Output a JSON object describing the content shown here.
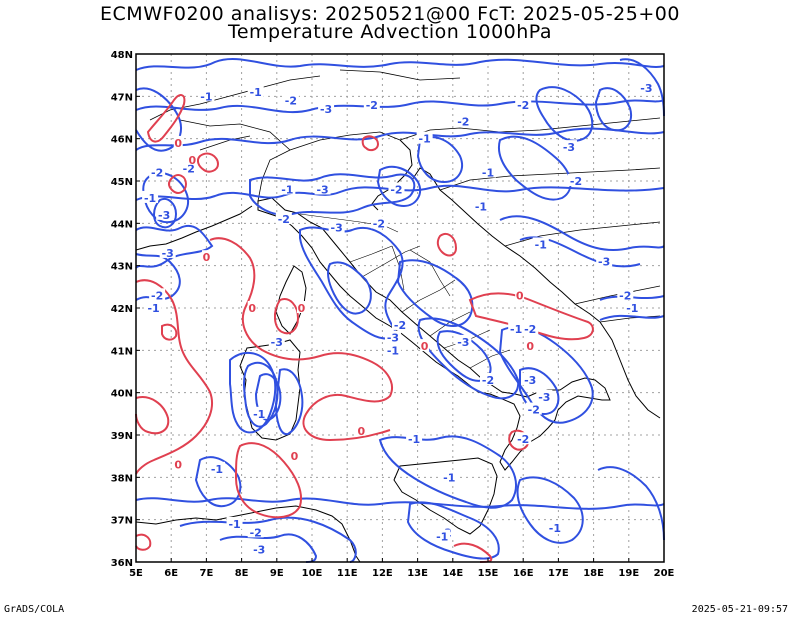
{
  "header": {
    "line1": "ECMWF0200 analisys: 20250521@00 FcT: 2025-05-25+00",
    "line2": "Temperature Advection 1000hPa"
  },
  "footer": {
    "left": "GrADS/COLA",
    "right": "2025-05-21-09:57"
  },
  "colors": {
    "negative_contour": "#3050e0",
    "positive_contour": "#e04050",
    "coastline": "#000000",
    "grid": "#a0a0a0"
  },
  "map": {
    "lon_range": [
      5,
      20
    ],
    "lat_range": [
      36,
      48
    ],
    "lon_ticks": [
      "5E",
      "6E",
      "7E",
      "8E",
      "9E",
      "10E",
      "11E",
      "12E",
      "13E",
      "14E",
      "15E",
      "16E",
      "17E",
      "18E",
      "19E",
      "20E"
    ],
    "lat_ticks": [
      "36N",
      "37N",
      "38N",
      "39N",
      "40N",
      "41N",
      "42N",
      "43N",
      "44N",
      "45N",
      "46N",
      "47N",
      "48N"
    ],
    "contour_labels": [
      {
        "text": "-1",
        "lon": 7.0,
        "lat": 47.0,
        "sign": "neg"
      },
      {
        "text": "-1",
        "lon": 8.4,
        "lat": 47.1,
        "sign": "neg"
      },
      {
        "text": "-2",
        "lon": 9.4,
        "lat": 46.9,
        "sign": "neg"
      },
      {
        "text": "-2",
        "lon": 11.7,
        "lat": 46.8,
        "sign": "neg"
      },
      {
        "text": "-3",
        "lon": 10.4,
        "lat": 46.7,
        "sign": "neg"
      },
      {
        "text": "-2",
        "lon": 14.3,
        "lat": 46.4,
        "sign": "neg"
      },
      {
        "text": "-2",
        "lon": 16.0,
        "lat": 46.8,
        "sign": "neg"
      },
      {
        "text": "-3",
        "lon": 19.5,
        "lat": 47.2,
        "sign": "neg"
      },
      {
        "text": "-3",
        "lon": 17.3,
        "lat": 45.8,
        "sign": "neg"
      },
      {
        "text": "-2",
        "lon": 17.5,
        "lat": 45.0,
        "sign": "neg"
      },
      {
        "text": "-1",
        "lon": 15.0,
        "lat": 45.2,
        "sign": "neg"
      },
      {
        "text": "-1",
        "lon": 13.2,
        "lat": 46.0,
        "sign": "neg"
      },
      {
        "text": "-2",
        "lon": 12.4,
        "lat": 44.8,
        "sign": "neg"
      },
      {
        "text": "-2",
        "lon": 5.6,
        "lat": 45.2,
        "sign": "neg"
      },
      {
        "text": "-2",
        "lon": 6.5,
        "lat": 45.3,
        "sign": "neg"
      },
      {
        "text": "-1",
        "lon": 5.4,
        "lat": 44.6,
        "sign": "neg"
      },
      {
        "text": "-3",
        "lon": 5.8,
        "lat": 44.2,
        "sign": "neg"
      },
      {
        "text": "-1",
        "lon": 9.3,
        "lat": 44.8,
        "sign": "neg"
      },
      {
        "text": "-3",
        "lon": 10.3,
        "lat": 44.8,
        "sign": "neg"
      },
      {
        "text": "-2",
        "lon": 9.2,
        "lat": 44.1,
        "sign": "neg"
      },
      {
        "text": "-3",
        "lon": 10.7,
        "lat": 43.9,
        "sign": "neg"
      },
      {
        "text": "-2",
        "lon": 11.9,
        "lat": 44.0,
        "sign": "neg"
      },
      {
        "text": "-1",
        "lon": 16.5,
        "lat": 43.5,
        "sign": "neg"
      },
      {
        "text": "-1",
        "lon": 14.8,
        "lat": 44.4,
        "sign": "neg"
      },
      {
        "text": "-3",
        "lon": 18.3,
        "lat": 43.1,
        "sign": "neg"
      },
      {
        "text": "-2",
        "lon": 5.6,
        "lat": 42.3,
        "sign": "neg"
      },
      {
        "text": "-1",
        "lon": 5.5,
        "lat": 42.0,
        "sign": "neg"
      },
      {
        "text": "-3",
        "lon": 5.9,
        "lat": 43.3,
        "sign": "neg"
      },
      {
        "text": "-2",
        "lon": 18.9,
        "lat": 42.3,
        "sign": "neg"
      },
      {
        "text": "-1",
        "lon": 19.1,
        "lat": 42.0,
        "sign": "neg"
      },
      {
        "text": "-2",
        "lon": 12.5,
        "lat": 41.6,
        "sign": "neg"
      },
      {
        "text": "-3",
        "lon": 12.3,
        "lat": 41.3,
        "sign": "neg"
      },
      {
        "text": "-1",
        "lon": 12.3,
        "lat": 41.0,
        "sign": "neg"
      },
      {
        "text": "-3",
        "lon": 14.3,
        "lat": 41.2,
        "sign": "neg"
      },
      {
        "text": "-1",
        "lon": 15.8,
        "lat": 41.5,
        "sign": "neg"
      },
      {
        "text": "-2",
        "lon": 16.2,
        "lat": 41.5,
        "sign": "neg"
      },
      {
        "text": "-2",
        "lon": 15.0,
        "lat": 40.3,
        "sign": "neg"
      },
      {
        "text": "-3",
        "lon": 16.2,
        "lat": 40.3,
        "sign": "neg"
      },
      {
        "text": "-3",
        "lon": 16.6,
        "lat": 39.9,
        "sign": "neg"
      },
      {
        "text": "-2",
        "lon": 16.3,
        "lat": 39.6,
        "sign": "neg"
      },
      {
        "text": "-1",
        "lon": 8.5,
        "lat": 39.5,
        "sign": "neg"
      },
      {
        "text": "-1",
        "lon": 12.9,
        "lat": 38.9,
        "sign": "neg"
      },
      {
        "text": "-1",
        "lon": 7.3,
        "lat": 38.2,
        "sign": "neg"
      },
      {
        "text": "-2",
        "lon": 16.0,
        "lat": 38.9,
        "sign": "neg"
      },
      {
        "text": "-1",
        "lon": 13.9,
        "lat": 38.0,
        "sign": "neg"
      },
      {
        "text": "-1",
        "lon": 7.8,
        "lat": 36.9,
        "sign": "neg"
      },
      {
        "text": "-2",
        "lon": 8.4,
        "lat": 36.7,
        "sign": "neg"
      },
      {
        "text": "-3",
        "lon": 8.5,
        "lat": 36.3,
        "sign": "neg"
      },
      {
        "text": "-2",
        "lon": 13.8,
        "lat": 36.7,
        "sign": "neg"
      },
      {
        "text": "-1",
        "lon": 13.7,
        "lat": 36.6,
        "sign": "neg"
      },
      {
        "text": "-1",
        "lon": 16.9,
        "lat": 36.8,
        "sign": "neg"
      },
      {
        "text": "-3",
        "lon": 9.0,
        "lat": 41.2,
        "sign": "neg"
      },
      {
        "text": "0",
        "lon": 7.0,
        "lat": 43.2,
        "sign": "pos"
      },
      {
        "text": "0",
        "lon": 9.7,
        "lat": 42.0,
        "sign": "pos"
      },
      {
        "text": "0",
        "lon": 8.3,
        "lat": 42.0,
        "sign": "pos"
      },
      {
        "text": "0",
        "lon": 11.4,
        "lat": 39.1,
        "sign": "pos"
      },
      {
        "text": "0",
        "lon": 6.2,
        "lat": 38.3,
        "sign": "pos"
      },
      {
        "text": "0",
        "lon": 9.5,
        "lat": 38.5,
        "sign": "pos"
      },
      {
        "text": "0",
        "lon": 13.2,
        "lat": 41.1,
        "sign": "pos"
      },
      {
        "text": "0",
        "lon": 15.9,
        "lat": 42.3,
        "sign": "pos"
      },
      {
        "text": "0",
        "lon": 16.2,
        "lat": 41.1,
        "sign": "pos"
      },
      {
        "text": "0",
        "lon": 6.2,
        "lat": 45.9,
        "sign": "pos"
      },
      {
        "text": "0",
        "lon": 6.6,
        "lat": 45.5,
        "sign": "pos"
      }
    ]
  }
}
